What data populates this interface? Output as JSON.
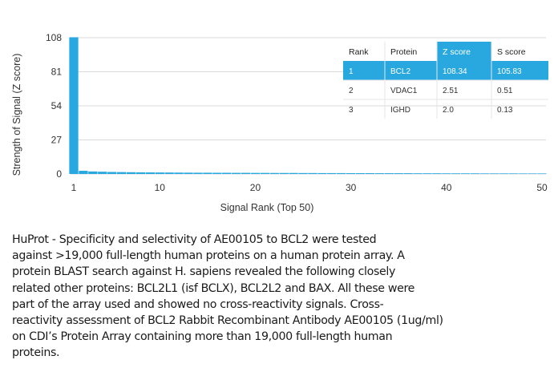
{
  "chart_data": {
    "type": "bar",
    "xlabel": "Signal Rank (Top 50)",
    "ylabel": "Strength of Signal (Z score)",
    "xlim": [
      1,
      50
    ],
    "ylim": [
      0,
      108
    ],
    "x_ticks": [
      "1",
      "10",
      "20",
      "30",
      "40",
      "50"
    ],
    "y_ticks": [
      "0",
      "27",
      "54",
      "81",
      "108"
    ],
    "x": [
      1,
      2,
      3,
      4,
      5,
      6,
      7,
      8,
      9,
      10,
      11,
      12,
      13,
      14,
      15,
      16,
      17,
      18,
      19,
      20,
      21,
      22,
      23,
      24,
      25,
      26,
      27,
      28,
      29,
      30,
      31,
      32,
      33,
      34,
      35,
      36,
      37,
      38,
      39,
      40,
      41,
      42,
      43,
      44,
      45,
      46,
      47,
      48,
      49,
      50
    ],
    "values": [
      108.34,
      2.51,
      2.0,
      1.8,
      1.6,
      1.5,
      1.4,
      1.3,
      1.25,
      1.2,
      1.15,
      1.1,
      1.05,
      1.0,
      1.0,
      0.95,
      0.95,
      0.9,
      0.9,
      0.85,
      0.85,
      0.8,
      0.8,
      0.8,
      0.75,
      0.75,
      0.7,
      0.7,
      0.7,
      0.65,
      0.65,
      0.65,
      0.6,
      0.6,
      0.6,
      0.6,
      0.55,
      0.55,
      0.55,
      0.5,
      0.5,
      0.5,
      0.5,
      0.45,
      0.45,
      0.45,
      0.45,
      0.4,
      0.4,
      0.4
    ],
    "bar_color": "#29a8e0",
    "table": {
      "headers": [
        "Rank",
        "Protein",
        "Z score",
        "S score"
      ],
      "rows": [
        [
          "1",
          "BCL2",
          "108.34",
          "105.83"
        ],
        [
          "2",
          "VDAC1",
          "2.51",
          "0.51"
        ],
        [
          "3",
          "IGHD",
          "2.0",
          "0.13"
        ]
      ],
      "highlight_color": "#29a8e0"
    }
  },
  "caption": "HuProt  -  Specificity and selectivity of AE00105 to BCL2 were tested\nagainst >19,000 full-length human proteins on a human protein array. A\nprotein BLAST search against H. sapiens revealed the following closely\nrelated other proteins: BCL2L1 (isf BCLX), BCL2L2 and BAX. All these were\npart of the array used and showed no cross-reactivity signals. Cross-\nreactivity assessment of BCL2 Rabbit Recombinant Antibody AE00105 (1ug/ml)\non CDI’s Protein Array containing more than 19,000 full-length human\nproteins."
}
